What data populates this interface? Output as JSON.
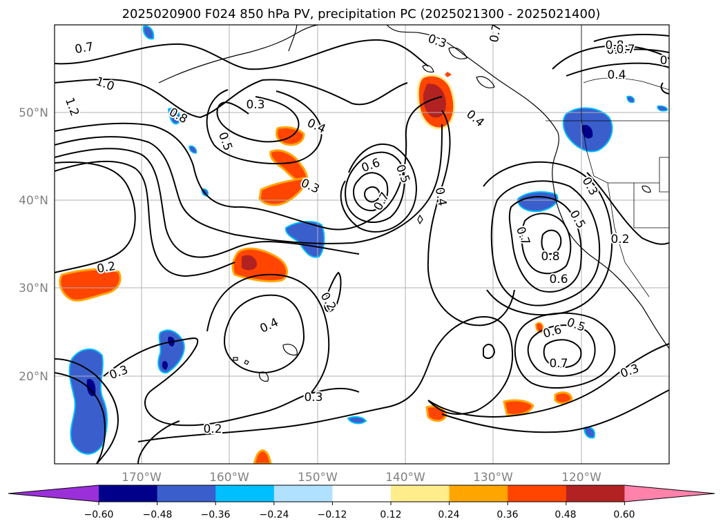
{
  "title": "2025020900 F024 850 hPa PV, precipitation PC (2025021300 - 2025021400)",
  "map": {
    "lon_labels": [
      "170°W",
      "160°W",
      "150°W",
      "140°W",
      "130°W",
      "120°W"
    ],
    "lat_labels": [
      "50°N",
      "40°N",
      "30°N",
      "20°N"
    ],
    "contour_labels": [
      "0.7",
      "1.0",
      "1.2",
      "0.8",
      "0.5",
      "0.3",
      "0.4",
      "0.3",
      "0.6",
      "0.5",
      "0.7",
      "0.4",
      "0.4",
      "0.2",
      "0.4",
      "0.2",
      "0.3",
      "0.3",
      "0.2",
      "0.7",
      "0.8",
      "0.6",
      "0.5",
      "0.3",
      "0.2",
      "0.6",
      "0.5",
      "0.7",
      "0.3",
      "0.7",
      "0.8",
      "0.4",
      "0.3",
      "0.8",
      "0.7",
      "0"
    ]
  },
  "colorbar": {
    "ticks": [
      "−0.60",
      "−0.48",
      "−0.36",
      "−0.24",
      "−0.12",
      "0.12",
      "0.24",
      "0.36",
      "0.48",
      "0.60"
    ],
    "colors": [
      "#9b30d9",
      "#00008b",
      "#3a5fcd",
      "#00bfff",
      "#b0e2ff",
      "#ffffff",
      "#ffec8b",
      "#ffa500",
      "#ff4500",
      "#b22222",
      "#ff82ab"
    ]
  },
  "colors": {
    "grid": "#b0b0b0",
    "tick_text": "#808080",
    "contour": "#000000"
  }
}
